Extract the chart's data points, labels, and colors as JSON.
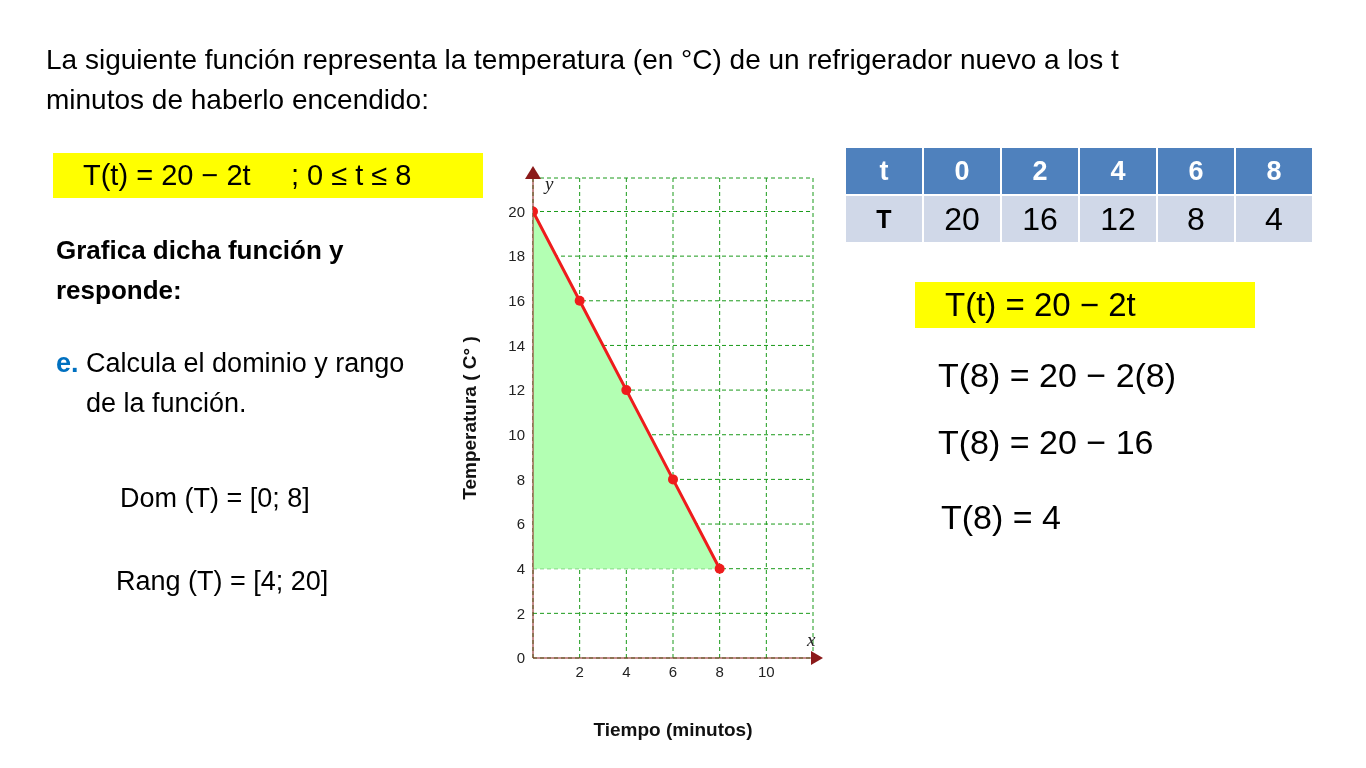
{
  "chart_data": {
    "type": "line",
    "title": "La siguiente función representa la temperatura (en °C) de un refrigerador nuevo a los t minutos de haberlo encendido:",
    "xlabel": "Tiempo (minutos)",
    "ylabel": "Temperatura ( C° )",
    "x": [
      0,
      2,
      4,
      6,
      8
    ],
    "series": [
      {
        "color": "#ee1c1c",
        "values": [
          20,
          16,
          12,
          8,
          4
        ],
        "lower": [
          4,
          4,
          4,
          4,
          4
        ],
        "upper": [
          20,
          16,
          12,
          8,
          4
        ]
      }
    ],
    "xlim": [
      0,
      12
    ],
    "xticks": [
      2,
      4,
      6,
      8,
      10
    ],
    "ylim": [
      0,
      21.5
    ],
    "yticks": [
      0,
      2,
      4,
      6,
      8,
      10,
      12,
      14,
      16,
      18,
      20
    ],
    "grid": true,
    "marker": "circle",
    "line_style": "solid",
    "annotations": [
      "T(t) = 20 − 2t     ; 0 ≤ t ≤ 8",
      "Grafica dicha función y responde:",
      "e. Calcula el dominio y rango de la función.",
      "Dom (T) = [0; 8]",
      "Rang (T) = [4; 20]",
      "x",
      "y",
      "t",
      "T",
      "T(t) = 20 − 2t",
      "T(8) = 20 − 2(8)",
      "T(8) = 20 − 16",
      "T(8) = 4",
      "0",
      "2",
      "4",
      "6",
      "8",
      "20",
      "16",
      "12",
      "8",
      "4"
    ]
  }
}
